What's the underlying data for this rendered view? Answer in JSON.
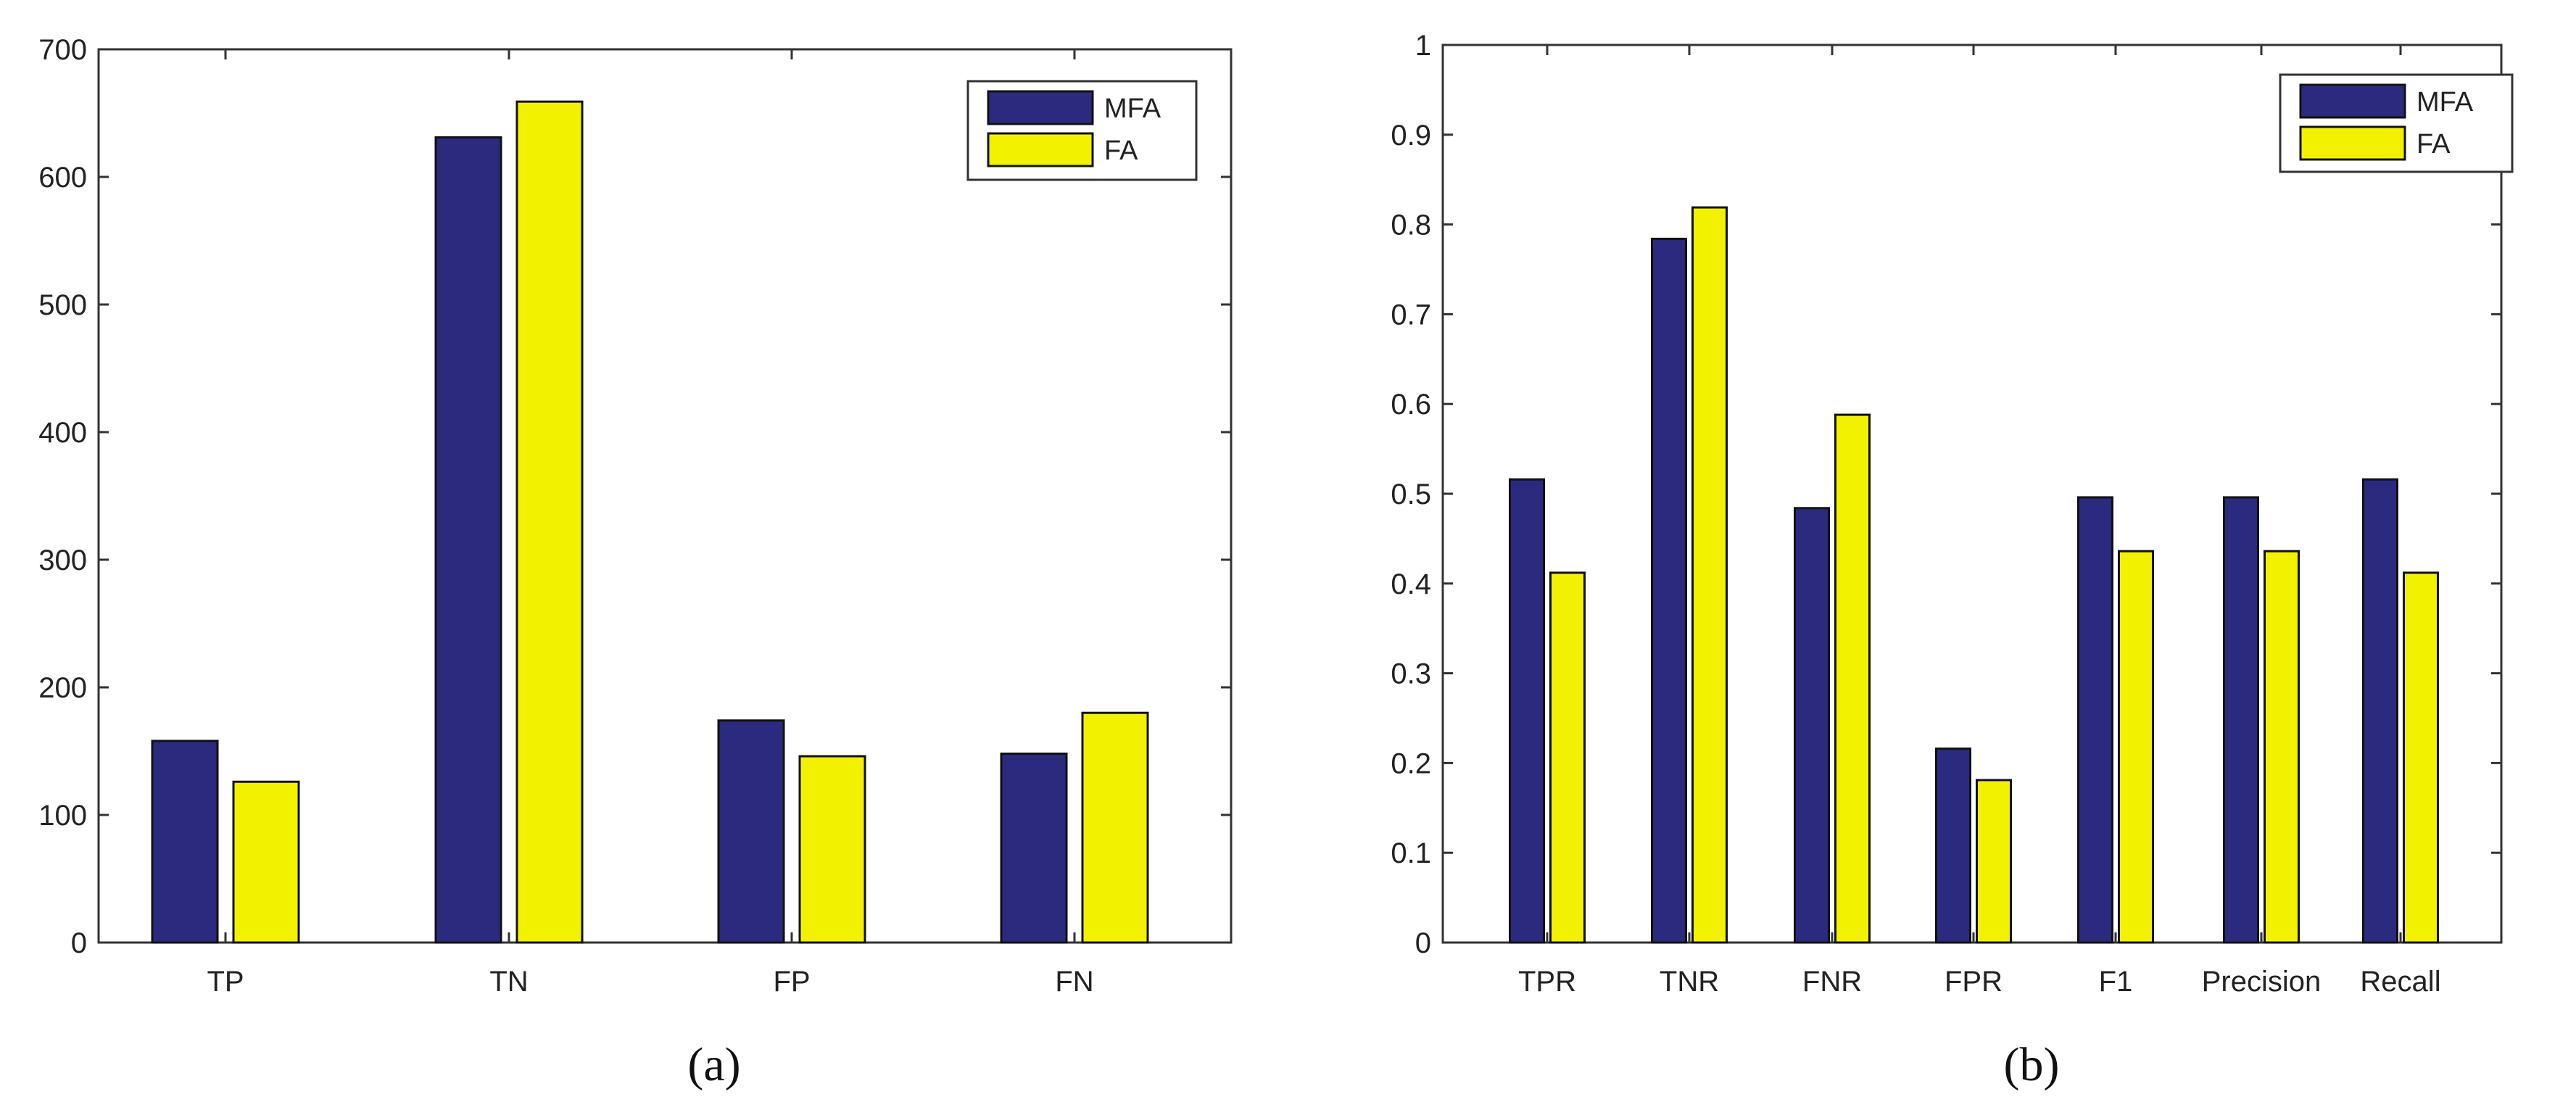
{
  "chart_data": [
    {
      "type": "bar",
      "caption": "(a)",
      "categories": [
        "TP",
        "TN",
        "FP",
        "FN"
      ],
      "series": [
        {
          "name": "MFA",
          "color": "#2b2a7e",
          "values": [
            158,
            631,
            174,
            148
          ]
        },
        {
          "name": "FA",
          "color": "#f2f200",
          "values": [
            126,
            659,
            146,
            180
          ]
        }
      ],
      "ylim": [
        0,
        700
      ],
      "yticks": [
        "0",
        "100",
        "200",
        "300",
        "400",
        "500",
        "600",
        "700"
      ],
      "ytick_values": [
        0,
        100,
        200,
        300,
        400,
        500,
        600,
        700
      ],
      "legend": "top-right",
      "title": "",
      "xlabel": "",
      "ylabel": ""
    },
    {
      "type": "bar",
      "caption": "(b)",
      "categories": [
        "TPR",
        "TNR",
        "FNR",
        "FPR",
        "F1",
        "Precision",
        "Recall"
      ],
      "series": [
        {
          "name": "MFA",
          "color": "#2b2a7e",
          "values": [
            0.516,
            0.784,
            0.484,
            0.216,
            0.496,
            0.496,
            0.516
          ]
        },
        {
          "name": "FA",
          "color": "#f2f200",
          "values": [
            0.412,
            0.819,
            0.588,
            0.181,
            0.436,
            0.436,
            0.412
          ]
        }
      ],
      "ylim": [
        0,
        1
      ],
      "yticks": [
        "0",
        "0.1",
        "0.2",
        "0.3",
        "0.4",
        "0.5",
        "0.6",
        "0.7",
        "0.8",
        "0.9",
        "1"
      ],
      "ytick_values": [
        0,
        0.1,
        0.2,
        0.3,
        0.4,
        0.5,
        0.6,
        0.7,
        0.8,
        0.9,
        1
      ],
      "legend": "top-right",
      "title": "",
      "xlabel": "",
      "ylabel": ""
    }
  ]
}
